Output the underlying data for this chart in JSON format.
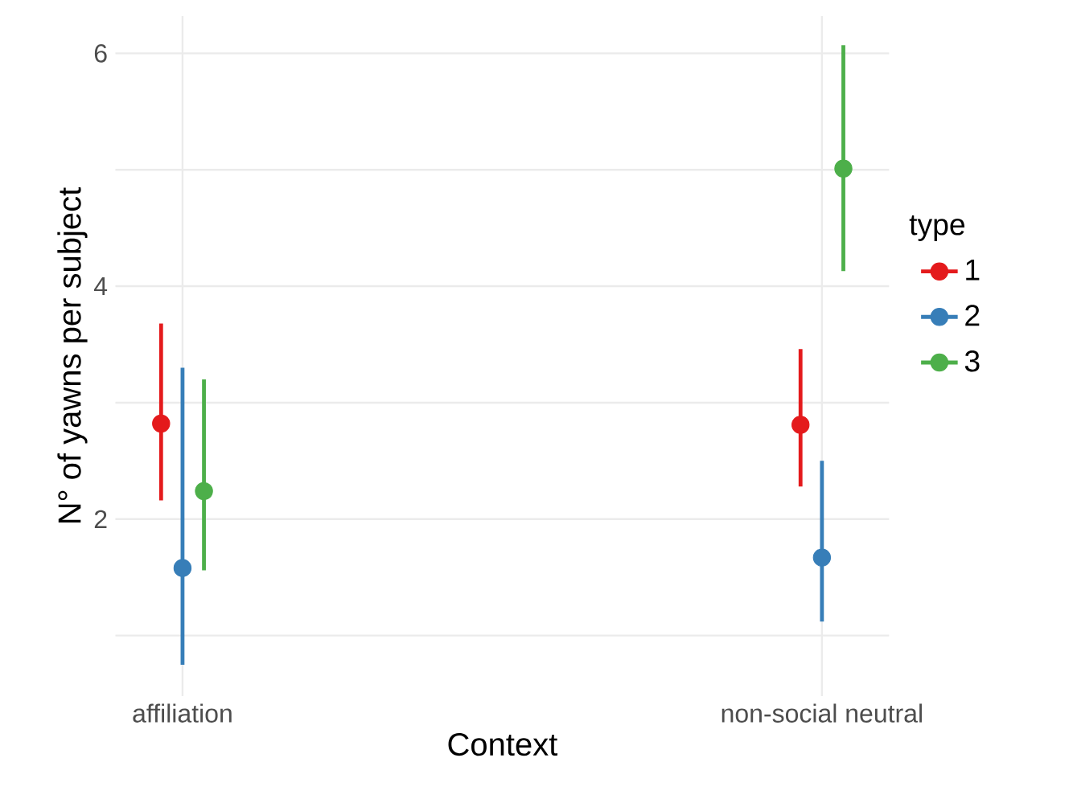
{
  "chart_data": {
    "type": "scatter",
    "xlabel": "Context",
    "ylabel": "N° of yawns per subject",
    "legend_title": "type",
    "categories": [
      "affiliation",
      "non-social neutral"
    ],
    "series": [
      {
        "name": "1",
        "color": "#e41a1c",
        "values": [
          2.82,
          2.81
        ],
        "errors": [
          [
            2.16,
            3.68
          ],
          [
            2.28,
            3.46
          ]
        ]
      },
      {
        "name": "2",
        "color": "#377eb8",
        "values": [
          1.58,
          1.67
        ],
        "errors": [
          [
            0.75,
            3.3
          ],
          [
            1.12,
            2.5
          ]
        ]
      },
      {
        "name": "3",
        "color": "#4daf4a",
        "values": [
          2.24,
          5.01
        ],
        "errors": [
          [
            1.56,
            3.2
          ],
          [
            4.13,
            6.07
          ]
        ]
      }
    ],
    "ylim": [
      0.48,
      6.32
    ],
    "yticks": [
      {
        "value": 1,
        "label": null
      },
      2,
      {
        "value": 3,
        "label": null
      },
      4,
      {
        "value": 5,
        "label": null
      },
      6
    ],
    "grid": true,
    "legend": "right",
    "marker": "circle"
  }
}
